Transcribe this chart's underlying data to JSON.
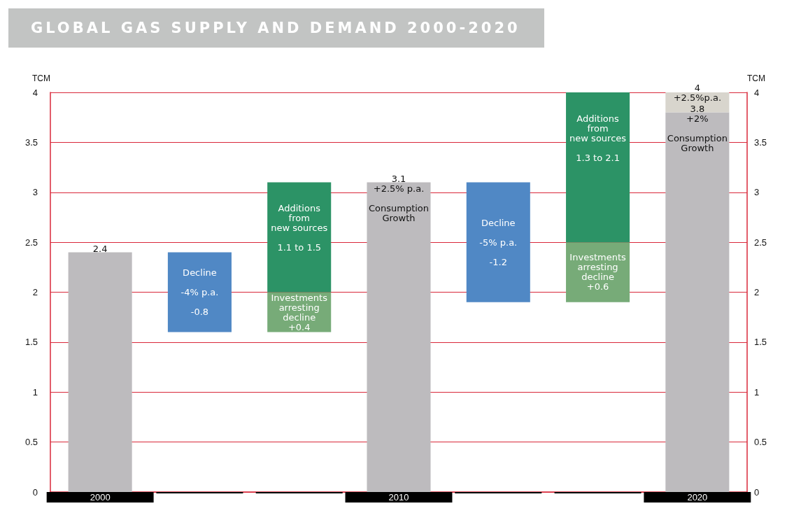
{
  "chart_data": {
    "type": "bar",
    "title": "GLOBAL GAS SUPPLY AND DEMAND 2000-2020",
    "ylabel": "TCM",
    "y2label": "TCM",
    "categories": [
      "2000",
      null,
      null,
      "2010",
      null,
      null,
      "2020"
    ],
    "ylim": [
      0,
      4
    ],
    "yticks": [
      0,
      0.5,
      1,
      1.5,
      2,
      2.5,
      3,
      3.5,
      4
    ],
    "y2lim": [
      0,
      4
    ],
    "y2ticks": [
      0,
      0.5,
      1,
      1.5,
      2,
      2.5,
      3,
      3.5,
      4
    ],
    "grid": "y",
    "series": [
      {
        "color": "#bdbbbe",
        "base": [
          0,
          null,
          null,
          0,
          null,
          null,
          0
        ],
        "values": [
          2.4,
          null,
          null,
          3.1,
          null,
          null,
          3.8
        ],
        "value_labels": [
          "2.4",
          null,
          null,
          "3.1\n+2.5% p.a.\n\nConsumption\nGrowth",
          null,
          null,
          "3.8\n+2%\n\nConsumption\nGrowth"
        ]
      },
      {
        "color": "#5088c5",
        "base": [
          null,
          2.4,
          null,
          null,
          3.1,
          null,
          null
        ],
        "values": [
          null,
          -0.8,
          null,
          null,
          -1.2,
          null,
          null
        ],
        "value_labels": [
          null,
          "Decline\n\n-4% p.a.\n\n-0.8",
          null,
          null,
          "Decline\n\n-5% p.a.\n\n-1.2",
          null,
          null
        ]
      },
      {
        "color": "#77ab78",
        "base": [
          null,
          null,
          1.6,
          null,
          null,
          1.9,
          null
        ],
        "values": [
          null,
          null,
          0.4,
          null,
          null,
          0.6,
          null
        ],
        "value_labels": [
          null,
          null,
          "Investments\narresting\ndecline\n+0.4",
          null,
          null,
          "Investments\narresting\ndecline\n+0.6",
          null
        ]
      },
      {
        "color": "#2c9366",
        "base": [
          null,
          null,
          2.0,
          null,
          null,
          2.5,
          null
        ],
        "values": [
          null,
          null,
          1.1,
          null,
          null,
          1.5,
          null
        ],
        "value_labels": [
          null,
          null,
          "Additions\nfrom\nnew sources\n\n1.1 to 1.5",
          null,
          null,
          "Additions\nfrom\nnew sources\n\n1.3 to 2.1",
          null
        ]
      },
      {
        "color": "#d8d5cd",
        "base": [
          null,
          null,
          null,
          null,
          null,
          null,
          3.8
        ],
        "values": [
          null,
          null,
          null,
          null,
          null,
          null,
          0.2
        ]
      }
    ],
    "annotations": [
      {
        "text": "4\n+2.5%p.a.",
        "x": "2020",
        "y": 4
      }
    ]
  }
}
